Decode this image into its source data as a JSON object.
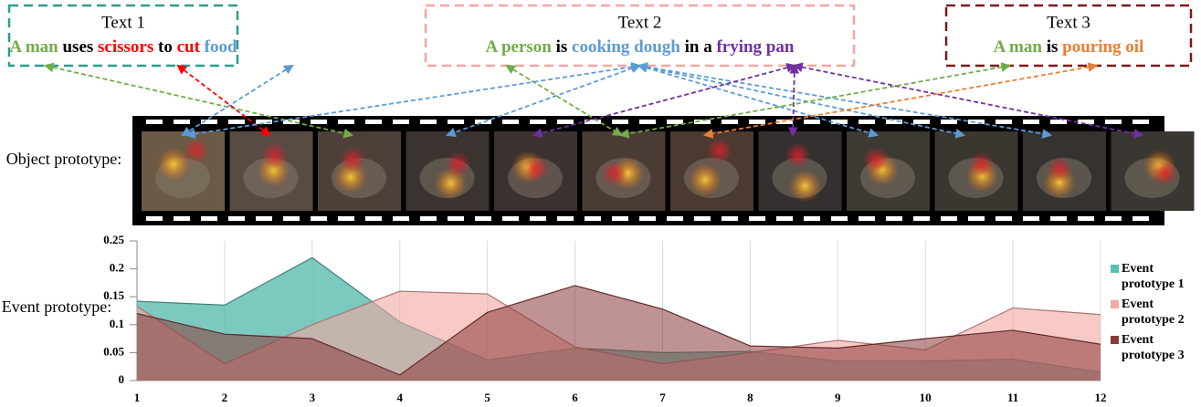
{
  "texts": [
    {
      "title": "Text 1",
      "segments": [
        {
          "text": "A man",
          "color": "#70ad47"
        },
        {
          "text": " uses ",
          "color": "#000000"
        },
        {
          "text": "scissors",
          "color": "#ff0000"
        },
        {
          "text": " to ",
          "color": "#000000"
        },
        {
          "text": "cut",
          "color": "#ff0000"
        },
        {
          "text": " food",
          "color": "#5b9bd5"
        }
      ]
    },
    {
      "title": "Text 2",
      "segments": [
        {
          "text": "A person",
          "color": "#70ad47"
        },
        {
          "text": " is ",
          "color": "#000000"
        },
        {
          "text": "cooking dough",
          "color": "#5b9bd5"
        },
        {
          "text": " in a ",
          "color": "#000000"
        },
        {
          "text": "frying pan",
          "color": "#7030a0"
        }
      ]
    },
    {
      "title": "Text 3",
      "segments": [
        {
          "text": "A man",
          "color": "#70ad47"
        },
        {
          "text": " is ",
          "color": "#000000"
        },
        {
          "text": "pouring oil",
          "color": "#ed7d31"
        }
      ]
    }
  ],
  "object_label": "Object prototype:",
  "event_label": "Event prototype:",
  "chart_data": {
    "type": "area",
    "x": [
      1,
      2,
      3,
      4,
      5,
      6,
      7,
      8,
      9,
      10,
      11,
      12
    ],
    "xlim": [
      1,
      12
    ],
    "xticks": [
      1,
      2,
      3,
      4,
      5,
      6,
      7,
      8,
      9,
      10,
      11,
      12
    ],
    "ylim": [
      0,
      0.25
    ],
    "yticks": [
      0,
      0.05,
      0.1,
      0.15,
      0.2,
      0.25
    ],
    "grid": true,
    "legend": "right",
    "series": [
      {
        "name": "Event prototype 1",
        "color": "#5bbcb0",
        "values": [
          0.142,
          0.135,
          0.22,
          0.105,
          0.037,
          0.058,
          0.05,
          0.052,
          0.035,
          0.035,
          0.038,
          0.015
        ]
      },
      {
        "name": "Event prototype 2",
        "color": "#f4a6a0",
        "values": [
          0.133,
          0.03,
          0.1,
          0.16,
          0.155,
          0.06,
          0.03,
          0.05,
          0.072,
          0.055,
          0.13,
          0.118
        ]
      },
      {
        "name": "Event prototype 3",
        "color": "#8b3a3a",
        "values": [
          0.12,
          0.083,
          0.075,
          0.01,
          0.122,
          0.17,
          0.128,
          0.062,
          0.058,
          0.075,
          0.09,
          0.065
        ]
      }
    ]
  }
}
